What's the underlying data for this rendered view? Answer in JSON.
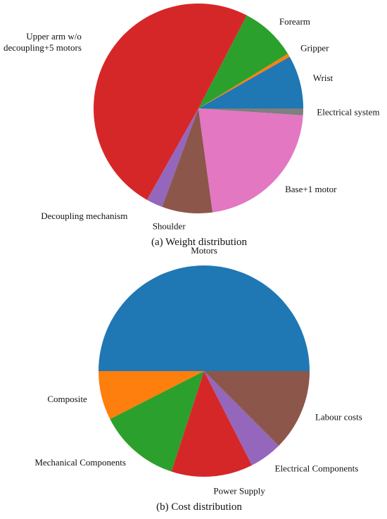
{
  "chart_data": [
    {
      "type": "pie",
      "title": "(a) Weight distribution",
      "start_angle_deg": 0,
      "direction": "counterclockwise",
      "slices": [
        {
          "label": "Wrist",
          "value": 7.8,
          "color": "#1f77b4"
        },
        {
          "label": "Gripper",
          "value": 0.5,
          "color": "#ff7f0e"
        },
        {
          "label": "Forearm",
          "value": 8.2,
          "color": "#2ca02c"
        },
        {
          "label": "Upper arm w/o\ndecoupling+5 motors",
          "value": 47.0,
          "color": "#d62728"
        },
        {
          "label": "Decoupling mechanism",
          "value": 2.4,
          "color": "#9467bd"
        },
        {
          "label": "Shoulder",
          "value": 7.4,
          "color": "#8c564b"
        },
        {
          "label": "Base+1 motor",
          "value": 20.7,
          "color": "#e377c2"
        },
        {
          "label": "Electrical system",
          "value": 1.0,
          "color": "#7f7f7f"
        }
      ]
    },
    {
      "type": "pie",
      "title": "(b) Cost  distribution",
      "start_angle_deg": 0,
      "direction": "counterclockwise",
      "slices": [
        {
          "label": "Motors",
          "value": 50.0,
          "color": "#1f77b4"
        },
        {
          "label": "Composite",
          "value": 7.5,
          "color": "#ff7f0e"
        },
        {
          "label": "Mechanical Components",
          "value": 12.5,
          "color": "#2ca02c"
        },
        {
          "label": "Power Supply",
          "value": 12.5,
          "color": "#d62728"
        },
        {
          "label": "Electrical Components",
          "value": 5.0,
          "color": "#9467bd"
        },
        {
          "label": "Labour costs",
          "value": 12.5,
          "color": "#8c564b"
        }
      ]
    }
  ]
}
